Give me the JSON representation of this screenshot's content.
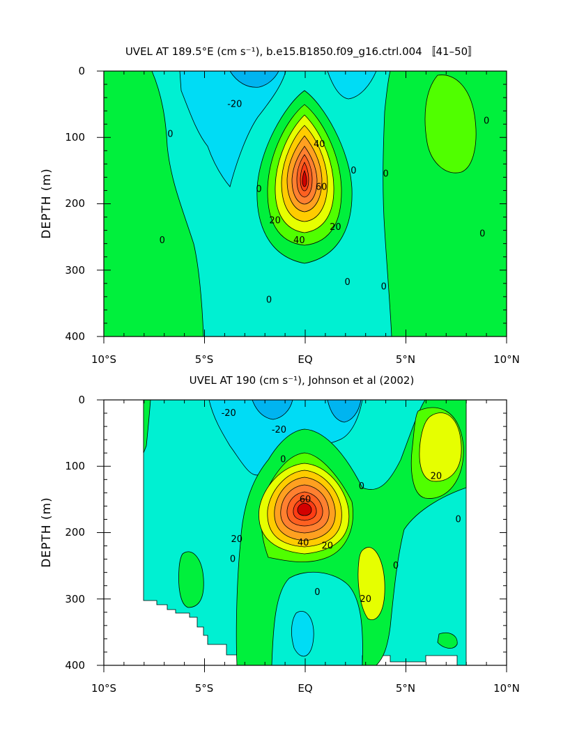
{
  "chart_data": [
    {
      "type": "contour",
      "title": "UVEL AT 189.5°E (cm s⁻¹), b.e15.B1850.f09_g16.ctrl.004 〚41–50〛",
      "ylabel": "DEPTH (m)",
      "xlabel": "",
      "x_ticks": [
        "10°S",
        "5°S",
        "EQ",
        "5°N",
        "10°N"
      ],
      "x_tick_values": [
        -10,
        -5,
        0,
        5,
        10
      ],
      "y_ticks": [
        "0",
        "100",
        "200",
        "300",
        "400"
      ],
      "y_tick_values": [
        0,
        100,
        200,
        300,
        400
      ],
      "xlim": [
        -10,
        10
      ],
      "ylim": [
        400,
        0
      ],
      "contour_interval": 10,
      "max_value": 80,
      "core": {
        "lat": 0,
        "depth": 160
      },
      "contour_labels": [
        {
          "text": "-20",
          "lat": -3.5,
          "depth": 50
        },
        {
          "text": "0",
          "lat": -6.7,
          "depth": 95
        },
        {
          "text": "0",
          "lat": -7.1,
          "depth": 255
        },
        {
          "text": "0",
          "lat": -2.3,
          "depth": 178
        },
        {
          "text": "0",
          "lat": -1.8,
          "depth": 345
        },
        {
          "text": "0",
          "lat": 2.4,
          "depth": 150
        },
        {
          "text": "0",
          "lat": 2.1,
          "depth": 318
        },
        {
          "text": "0",
          "lat": 4.0,
          "depth": 155
        },
        {
          "text": "0",
          "lat": 3.9,
          "depth": 325
        },
        {
          "text": "0",
          "lat": 9.0,
          "depth": 75
        },
        {
          "text": "0",
          "lat": 8.8,
          "depth": 245
        },
        {
          "text": "40",
          "lat": 0.7,
          "depth": 110
        },
        {
          "text": "60",
          "lat": 0.8,
          "depth": 175
        },
        {
          "text": "20",
          "lat": -1.5,
          "depth": 225
        },
        {
          "text": "40",
          "lat": -0.3,
          "depth": 255
        },
        {
          "text": "20",
          "lat": 1.5,
          "depth": 235
        }
      ]
    },
    {
      "type": "contour",
      "title": "UVEL AT 190 (cm s⁻¹), Johnson et al (2002)",
      "ylabel": "DEPTH (m)",
      "xlabel": "",
      "x_ticks": [
        "10°S",
        "5°S",
        "EQ",
        "5°N",
        "10°N"
      ],
      "x_tick_values": [
        -10,
        -5,
        0,
        5,
        10
      ],
      "y_ticks": [
        "0",
        "100",
        "200",
        "300",
        "400"
      ],
      "y_tick_values": [
        0,
        100,
        200,
        300,
        400
      ],
      "xlim": [
        -10,
        10
      ],
      "ylim": [
        400,
        0
      ],
      "data_extent_lat": [
        -8,
        8
      ],
      "contour_interval": 10,
      "max_value": 80,
      "core": {
        "lat": 0,
        "depth": 150
      },
      "contour_labels": [
        {
          "text": "-20",
          "lat": -3.8,
          "depth": 20
        },
        {
          "text": "-20",
          "lat": -1.3,
          "depth": 45
        },
        {
          "text": "0",
          "lat": -1.1,
          "depth": 90
        },
        {
          "text": "60",
          "lat": 0.0,
          "depth": 150
        },
        {
          "text": "20",
          "lat": -3.4,
          "depth": 210
        },
        {
          "text": "40",
          "lat": -0.1,
          "depth": 215
        },
        {
          "text": "20",
          "lat": 1.1,
          "depth": 220
        },
        {
          "text": "0",
          "lat": -3.6,
          "depth": 240
        },
        {
          "text": "0",
          "lat": 2.8,
          "depth": 130
        },
        {
          "text": "0",
          "lat": 0.6,
          "depth": 290
        },
        {
          "text": "20",
          "lat": 3.0,
          "depth": 300
        },
        {
          "text": "0",
          "lat": 4.5,
          "depth": 250
        },
        {
          "text": "0",
          "lat": 7.6,
          "depth": 180
        },
        {
          "text": "20",
          "lat": 6.5,
          "depth": 115
        }
      ]
    }
  ]
}
